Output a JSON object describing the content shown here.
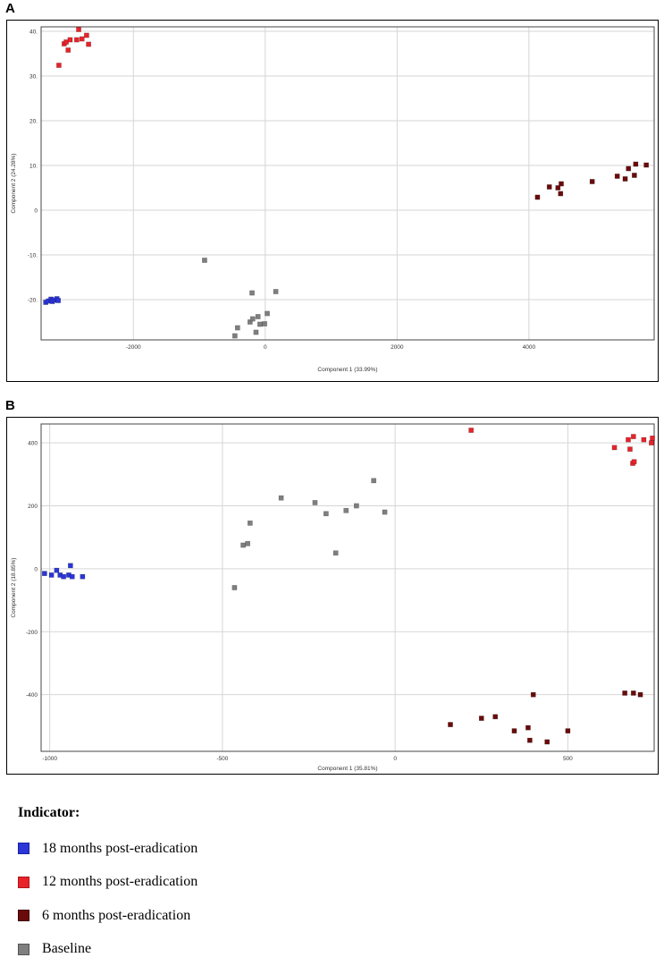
{
  "panels": [
    {
      "letter": "A"
    },
    {
      "letter": "B"
    }
  ],
  "legend": {
    "title": "Indicator:",
    "items": [
      {
        "label": "18 months post-eradication",
        "color": "#2b35d8",
        "border": "#1a22a0"
      },
      {
        "label": "12 months post-eradication",
        "color": "#e8232a",
        "border": "#b0161c"
      },
      {
        "label": "6 months post-eradication",
        "color": "#6a0b0b",
        "border": "#3f0505"
      },
      {
        "label": "Baseline",
        "color": "#7f7f7f",
        "border": "#555555"
      }
    ]
  },
  "chart_data": [
    {
      "type": "scatter",
      "panel": "A",
      "xlabel": "Component 1 (33.99%)",
      "ylabel": "Component 2 (24.28%)",
      "xlim": [
        -3400,
        5900
      ],
      "ylim": [
        -29,
        41
      ],
      "xticks": [
        -2000,
        0,
        2000,
        4000
      ],
      "yticks": [
        -20,
        -10,
        0,
        10,
        20,
        30,
        40
      ],
      "xtick_labels": [
        "-2000",
        "0",
        "2000",
        "4000"
      ],
      "ytick_labels": [
        "-20.",
        "-10.",
        "0",
        "10.",
        "20.",
        "30.",
        "40."
      ],
      "grid": true,
      "series": [
        {
          "name": "18 months post-eradication",
          "color": "#2b35d8",
          "points": [
            [
              -3330,
              -20.6
            ],
            [
              -3290,
              -20.3
            ],
            [
              -3250,
              -19.9
            ],
            [
              -3230,
              -20.4
            ],
            [
              -3200,
              -20.1
            ],
            [
              -3160,
              -19.8
            ],
            [
              -3140,
              -20.2
            ]
          ]
        },
        {
          "name": "12 months post-eradication",
          "color": "#e8232a",
          "points": [
            [
              -3130,
              32.4
            ],
            [
              -3050,
              37.2
            ],
            [
              -3020,
              37.6
            ],
            [
              -2990,
              35.8
            ],
            [
              -2960,
              38.1
            ],
            [
              -2860,
              38.1
            ],
            [
              -2830,
              40.4
            ],
            [
              -2780,
              38.3
            ],
            [
              -2710,
              39.1
            ],
            [
              -2680,
              37.1
            ]
          ]
        },
        {
          "name": "6 months post-eradication",
          "color": "#6a0b0b",
          "points": [
            [
              4130,
              2.9
            ],
            [
              4310,
              5.2
            ],
            [
              4440,
              5.0
            ],
            [
              4480,
              3.7
            ],
            [
              4490,
              5.9
            ],
            [
              4960,
              6.4
            ],
            [
              5340,
              7.6
            ],
            [
              5460,
              7.0
            ],
            [
              5510,
              9.3
            ],
            [
              5600,
              7.8
            ],
            [
              5620,
              10.3
            ],
            [
              5780,
              10.1
            ]
          ]
        },
        {
          "name": "Baseline",
          "color": "#7f7f7f",
          "points": [
            [
              -920,
              -11.2
            ],
            [
              -460,
              -28.1
            ],
            [
              -420,
              -26.3
            ],
            [
              -230,
              -25.0
            ],
            [
              -200,
              -18.5
            ],
            [
              -190,
              -24.3
            ],
            [
              -140,
              -27.3
            ],
            [
              -110,
              -23.8
            ],
            [
              -80,
              -25.5
            ],
            [
              -10,
              -25.4
            ],
            [
              30,
              -23.1
            ],
            [
              160,
              -18.2
            ]
          ]
        }
      ]
    },
    {
      "type": "scatter",
      "panel": "B",
      "xlabel": "Component 1 (35.81%)",
      "ylabel": "Component 2 (18.85%)",
      "xlim": [
        -1025,
        750
      ],
      "ylim": [
        -580,
        460
      ],
      "xticks": [
        -1000,
        -500,
        0,
        500
      ],
      "yticks": [
        -400,
        -200,
        0,
        200,
        400
      ],
      "xtick_labels": [
        "-1000",
        "-500",
        "0",
        "500"
      ],
      "ytick_labels": [
        "-400",
        "-200",
        "0",
        "200",
        "400"
      ],
      "grid": true,
      "series": [
        {
          "name": "18 months post-eradication",
          "color": "#2b35d8",
          "points": [
            [
              -1015,
              -15
            ],
            [
              -995,
              -20
            ],
            [
              -980,
              -5
            ],
            [
              -970,
              -20
            ],
            [
              -960,
              -25
            ],
            [
              -945,
              -20
            ],
            [
              -940,
              10
            ],
            [
              -935,
              -25
            ],
            [
              -905,
              -25
            ]
          ]
        },
        {
          "name": "12 months post-eradication",
          "color": "#e8232a",
          "points": [
            [
              220,
              440
            ],
            [
              635,
              385
            ],
            [
              675,
              410
            ],
            [
              680,
              380
            ],
            [
              688,
              335
            ],
            [
              690,
              420
            ],
            [
              692,
              340
            ],
            [
              720,
              410
            ],
            [
              742,
              400
            ],
            [
              745,
              415
            ]
          ]
        },
        {
          "name": "6 months post-eradication",
          "color": "#6a0b0b",
          "points": [
            [
              160,
              -495
            ],
            [
              250,
              -475
            ],
            [
              290,
              -470
            ],
            [
              345,
              -515
            ],
            [
              385,
              -505
            ],
            [
              390,
              -545
            ],
            [
              400,
              -400
            ],
            [
              440,
              -550
            ],
            [
              500,
              -515
            ],
            [
              665,
              -395
            ],
            [
              690,
              -395
            ],
            [
              710,
              -400
            ]
          ]
        },
        {
          "name": "Baseline",
          "color": "#7f7f7f",
          "points": [
            [
              -465,
              -60
            ],
            [
              -440,
              75
            ],
            [
              -427,
              80
            ],
            [
              -420,
              145
            ],
            [
              -330,
              225
            ],
            [
              -232,
              210
            ],
            [
              -200,
              175
            ],
            [
              -172,
              50
            ],
            [
              -142,
              185
            ],
            [
              -112,
              200
            ],
            [
              -62,
              280
            ],
            [
              -30,
              180
            ]
          ]
        }
      ]
    }
  ]
}
